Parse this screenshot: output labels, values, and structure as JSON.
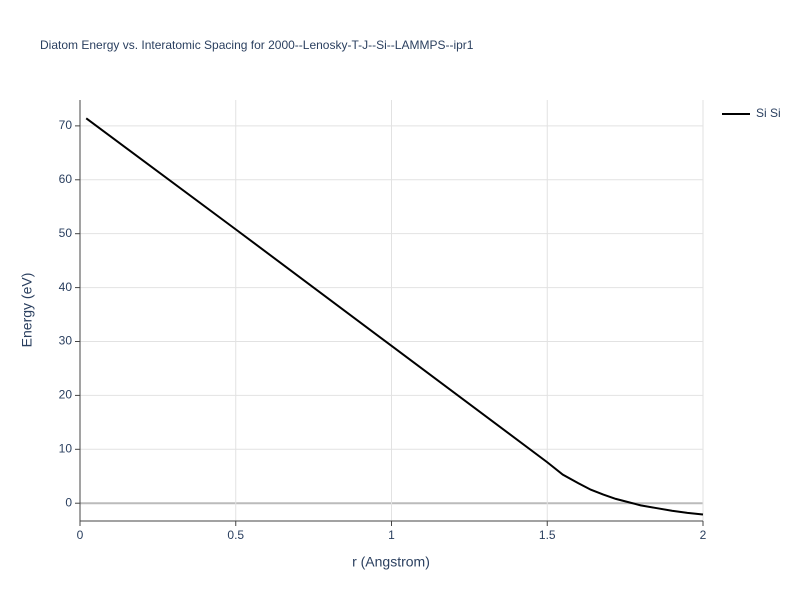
{
  "chart_data": {
    "type": "line",
    "title": "Diatom Energy vs. Interatomic Spacing for 2000--Lenosky-T-J--Si--LAMMPS--ipr1",
    "x_label": "r (Angstrom)",
    "y_label": "Energy (eV)",
    "x": [
      0.02,
      0.5,
      1.0,
      1.5,
      1.55,
      1.6,
      1.64,
      1.68,
      1.72,
      1.76,
      1.8,
      1.85,
      1.9,
      1.95,
      2.0
    ],
    "series": [
      {
        "name": "Si Si",
        "color": "#000000",
        "values": [
          71.4,
          50.8,
          29.2,
          7.6,
          5.3,
          3.7,
          2.5,
          1.6,
          0.8,
          0.2,
          -0.4,
          -0.9,
          -1.4,
          -1.8,
          -2.1
        ]
      }
    ],
    "xlim": [
      0,
      2
    ],
    "ylim": [
      -3.3,
      74.8
    ],
    "xticks": [
      0,
      0.5,
      1,
      1.5,
      2
    ],
    "yticks": [
      0,
      10,
      20,
      30,
      40,
      50,
      60,
      70
    ],
    "grid": true,
    "legend": "right"
  }
}
